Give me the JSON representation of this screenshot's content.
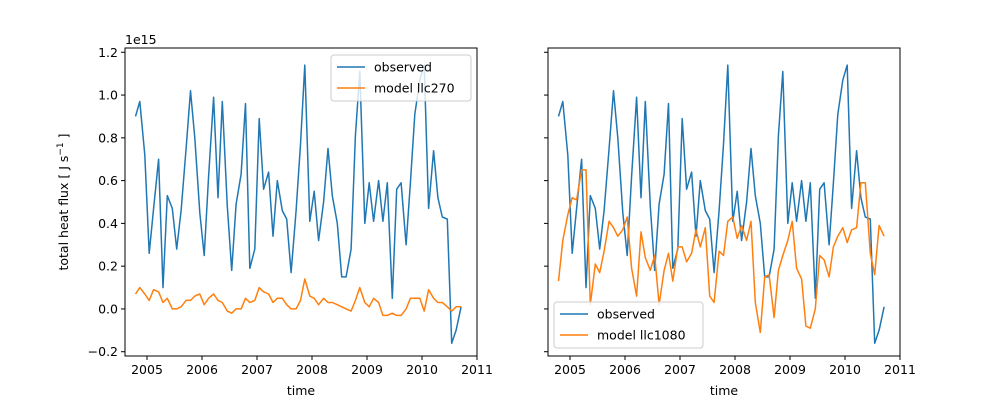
{
  "chart_data": [
    {
      "type": "line",
      "panel": "left",
      "xlabel": "time",
      "ylabel": "total heat flux [ J s$^{-1}$ ]",
      "ylabel_parts": {
        "main": "total heat flux [ J s",
        "sup": "−1",
        "end": " ]"
      },
      "y_offset_label": "1e15",
      "xlim": [
        2004.6,
        2011.0
      ],
      "ylim": [
        -0.22,
        1.22
      ],
      "xticks": [
        2005,
        2006,
        2007,
        2008,
        2009,
        2010,
        2011
      ],
      "xtick_labels": [
        "2005",
        "2006",
        "2007",
        "2008",
        "2009",
        "2010",
        "2011"
      ],
      "yticks": [
        -0.2,
        0.0,
        0.2,
        0.4,
        0.6,
        0.8,
        1.0,
        1.2
      ],
      "ytick_labels": [
        "−0.2",
        "0.0",
        "0.2",
        "0.4",
        "0.6",
        "0.8",
        "1.0",
        "1.2"
      ],
      "show_ytick_labels": true,
      "legend_position": "upper right",
      "series": [
        {
          "name": "observed",
          "color": "#1f77b4",
          "x": [
            2004.79,
            2004.87,
            2004.96,
            2005.04,
            2005.12,
            2005.21,
            2005.29,
            2005.37,
            2005.46,
            2005.54,
            2005.62,
            2005.71,
            2005.79,
            2005.87,
            2005.96,
            2006.04,
            2006.12,
            2006.21,
            2006.29,
            2006.37,
            2006.46,
            2006.54,
            2006.62,
            2006.71,
            2006.79,
            2006.87,
            2006.96,
            2007.04,
            2007.12,
            2007.21,
            2007.29,
            2007.37,
            2007.46,
            2007.54,
            2007.62,
            2007.71,
            2007.79,
            2007.87,
            2007.96,
            2008.04,
            2008.12,
            2008.21,
            2008.29,
            2008.37,
            2008.46,
            2008.54,
            2008.62,
            2008.71,
            2008.79,
            2008.87,
            2008.96,
            2009.04,
            2009.12,
            2009.21,
            2009.29,
            2009.37,
            2009.46,
            2009.54,
            2009.62,
            2009.71,
            2009.79,
            2009.87,
            2009.96,
            2010.04,
            2010.12,
            2010.21,
            2010.29,
            2010.37,
            2010.46,
            2010.54,
            2010.62,
            2010.71
          ],
          "y": [
            0.9,
            0.97,
            0.72,
            0.26,
            0.47,
            0.7,
            0.1,
            0.53,
            0.47,
            0.28,
            0.46,
            0.75,
            1.02,
            0.8,
            0.45,
            0.25,
            0.62,
            0.99,
            0.52,
            0.97,
            0.48,
            0.18,
            0.49,
            0.63,
            0.96,
            0.19,
            0.28,
            0.89,
            0.56,
            0.64,
            0.34,
            0.6,
            0.46,
            0.42,
            0.17,
            0.46,
            0.77,
            1.14,
            0.41,
            0.55,
            0.32,
            0.5,
            0.75,
            0.53,
            0.4,
            0.15,
            0.15,
            0.28,
            0.81,
            1.11,
            0.4,
            0.59,
            0.41,
            0.6,
            0.41,
            0.59,
            0.05,
            0.56,
            0.59,
            0.3,
            0.59,
            0.91,
            1.07,
            1.14,
            0.47,
            0.74,
            0.52,
            0.43,
            0.42,
            -0.16,
            -0.1,
            0.01
          ]
        },
        {
          "name": "model llc270",
          "color": "#ff7f0e",
          "x": [
            2004.79,
            2004.87,
            2004.96,
            2005.04,
            2005.12,
            2005.21,
            2005.29,
            2005.37,
            2005.46,
            2005.54,
            2005.62,
            2005.71,
            2005.79,
            2005.87,
            2005.96,
            2006.04,
            2006.12,
            2006.21,
            2006.29,
            2006.37,
            2006.46,
            2006.54,
            2006.62,
            2006.71,
            2006.79,
            2006.87,
            2006.96,
            2007.04,
            2007.12,
            2007.21,
            2007.29,
            2007.37,
            2007.46,
            2007.54,
            2007.62,
            2007.71,
            2007.79,
            2007.87,
            2007.96,
            2008.04,
            2008.12,
            2008.21,
            2008.29,
            2008.37,
            2008.46,
            2008.54,
            2008.62,
            2008.71,
            2008.79,
            2008.87,
            2008.96,
            2009.04,
            2009.12,
            2009.21,
            2009.29,
            2009.37,
            2009.46,
            2009.54,
            2009.62,
            2009.71,
            2009.79,
            2009.87,
            2009.96,
            2010.04,
            2010.12,
            2010.21,
            2010.29,
            2010.37,
            2010.46,
            2010.54,
            2010.62,
            2010.71
          ],
          "y": [
            0.07,
            0.1,
            0.07,
            0.04,
            0.09,
            0.08,
            0.03,
            0.05,
            0.0,
            0.0,
            0.01,
            0.04,
            0.04,
            0.06,
            0.07,
            0.02,
            0.05,
            0.07,
            0.04,
            0.03,
            -0.01,
            -0.02,
            0.0,
            0.0,
            0.05,
            0.03,
            0.04,
            0.1,
            0.08,
            0.07,
            0.03,
            0.05,
            0.05,
            0.02,
            0.0,
            0.0,
            0.04,
            0.14,
            0.06,
            0.05,
            0.02,
            0.05,
            0.03,
            0.03,
            0.02,
            0.01,
            0.0,
            -0.01,
            0.04,
            0.1,
            0.03,
            0.01,
            0.05,
            0.03,
            -0.03,
            -0.03,
            -0.02,
            -0.03,
            -0.03,
            0.0,
            0.05,
            0.05,
            0.05,
            -0.01,
            0.09,
            0.05,
            0.03,
            0.03,
            0.01,
            -0.01,
            0.01,
            0.01
          ]
        }
      ]
    },
    {
      "type": "line",
      "panel": "right",
      "xlabel": "time",
      "ylabel": "",
      "xlim": [
        2004.6,
        2011.0
      ],
      "ylim": [
        -0.22,
        1.22
      ],
      "xticks": [
        2005,
        2006,
        2007,
        2008,
        2009,
        2010,
        2011
      ],
      "xtick_labels": [
        "2005",
        "2006",
        "2007",
        "2008",
        "2009",
        "2010",
        "2011"
      ],
      "yticks": [
        -0.2,
        0.0,
        0.2,
        0.4,
        0.6,
        0.8,
        1.0,
        1.2
      ],
      "show_ytick_labels": false,
      "legend_position": "lower left",
      "series": [
        {
          "name": "observed",
          "color": "#1f77b4",
          "x": [
            2004.79,
            2004.87,
            2004.96,
            2005.04,
            2005.12,
            2005.21,
            2005.29,
            2005.37,
            2005.46,
            2005.54,
            2005.62,
            2005.71,
            2005.79,
            2005.87,
            2005.96,
            2006.04,
            2006.12,
            2006.21,
            2006.29,
            2006.37,
            2006.46,
            2006.54,
            2006.62,
            2006.71,
            2006.79,
            2006.87,
            2006.96,
            2007.04,
            2007.12,
            2007.21,
            2007.29,
            2007.37,
            2007.46,
            2007.54,
            2007.62,
            2007.71,
            2007.79,
            2007.87,
            2007.96,
            2008.04,
            2008.12,
            2008.21,
            2008.29,
            2008.37,
            2008.46,
            2008.54,
            2008.62,
            2008.71,
            2008.79,
            2008.87,
            2008.96,
            2009.04,
            2009.12,
            2009.21,
            2009.29,
            2009.37,
            2009.46,
            2009.54,
            2009.62,
            2009.71,
            2009.79,
            2009.87,
            2009.96,
            2010.04,
            2010.12,
            2010.21,
            2010.29,
            2010.37,
            2010.46,
            2010.54,
            2010.62,
            2010.71
          ],
          "y": [
            0.9,
            0.97,
            0.72,
            0.26,
            0.47,
            0.7,
            0.1,
            0.53,
            0.47,
            0.28,
            0.46,
            0.75,
            1.02,
            0.8,
            0.45,
            0.25,
            0.62,
            0.99,
            0.52,
            0.97,
            0.48,
            0.18,
            0.49,
            0.63,
            0.96,
            0.19,
            0.28,
            0.89,
            0.56,
            0.64,
            0.34,
            0.6,
            0.46,
            0.42,
            0.17,
            0.46,
            0.77,
            1.14,
            0.41,
            0.55,
            0.32,
            0.5,
            0.75,
            0.53,
            0.4,
            0.15,
            0.15,
            0.28,
            0.81,
            1.11,
            0.4,
            0.59,
            0.41,
            0.6,
            0.41,
            0.59,
            0.05,
            0.56,
            0.59,
            0.3,
            0.59,
            0.91,
            1.07,
            1.14,
            0.47,
            0.74,
            0.52,
            0.43,
            0.42,
            -0.16,
            -0.1,
            0.01
          ]
        },
        {
          "name": "model llc1080",
          "color": "#ff7f0e",
          "x": [
            2004.79,
            2004.87,
            2004.96,
            2005.04,
            2005.12,
            2005.21,
            2005.29,
            2005.37,
            2005.46,
            2005.54,
            2005.62,
            2005.71,
            2005.79,
            2005.87,
            2005.96,
            2006.04,
            2006.12,
            2006.21,
            2006.29,
            2006.37,
            2006.46,
            2006.54,
            2006.62,
            2006.71,
            2006.79,
            2006.87,
            2006.96,
            2007.04,
            2007.12,
            2007.21,
            2007.29,
            2007.37,
            2007.46,
            2007.54,
            2007.62,
            2007.71,
            2007.79,
            2007.87,
            2007.96,
            2008.04,
            2008.12,
            2008.21,
            2008.29,
            2008.37,
            2008.46,
            2008.54,
            2008.62,
            2008.71,
            2008.79,
            2008.87,
            2008.96,
            2009.04,
            2009.12,
            2009.21,
            2009.29,
            2009.37,
            2009.46,
            2009.54,
            2009.62,
            2009.71,
            2009.79,
            2009.87,
            2009.96,
            2010.04,
            2010.12,
            2010.21,
            2010.29,
            2010.37,
            2010.46,
            2010.54,
            2010.62,
            2010.71
          ],
          "y": [
            0.13,
            0.32,
            0.44,
            0.52,
            0.51,
            0.65,
            0.65,
            0.02,
            0.21,
            0.17,
            0.27,
            0.41,
            0.38,
            0.34,
            0.37,
            0.43,
            0.19,
            0.06,
            0.36,
            0.24,
            0.18,
            0.25,
            0.02,
            0.18,
            0.26,
            0.13,
            0.29,
            0.29,
            0.22,
            0.26,
            0.37,
            0.29,
            0.38,
            0.06,
            0.03,
            0.27,
            0.25,
            0.41,
            0.43,
            0.33,
            0.39,
            0.32,
            0.41,
            0.03,
            -0.11,
            0.15,
            0.16,
            -0.04,
            0.18,
            0.25,
            0.32,
            0.41,
            0.19,
            0.14,
            -0.08,
            -0.09,
            0.0,
            0.25,
            0.23,
            0.15,
            0.29,
            0.34,
            0.38,
            0.31,
            0.37,
            0.38,
            0.59,
            0.59,
            0.26,
            0.16,
            0.39,
            0.34
          ]
        }
      ]
    }
  ]
}
